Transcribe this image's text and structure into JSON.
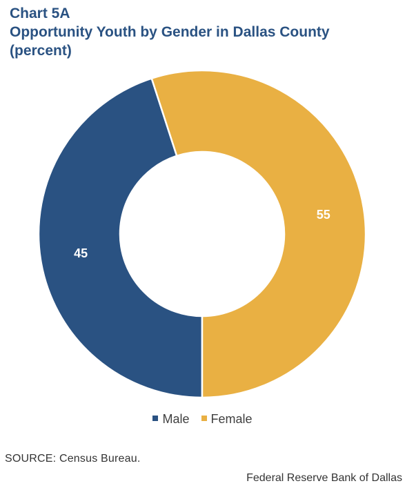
{
  "header": {
    "chart_number": "Chart 5A",
    "title": "Opportunity Youth by Gender in Dallas County",
    "unit": "(percent)"
  },
  "chart_data": {
    "type": "pie",
    "variant": "donut",
    "title": "Opportunity Youth by Gender in Dallas County",
    "subtitle": "(percent)",
    "categories": [
      "Male",
      "Female"
    ],
    "values": [
      45,
      55
    ],
    "colors": [
      "#2a5282",
      "#e9b043"
    ],
    "label_color": "#ffffff",
    "legend_position": "bottom"
  },
  "legend": {
    "items": [
      {
        "label": "Male",
        "color": "#2a5282"
      },
      {
        "label": "Female",
        "color": "#e9b043"
      }
    ]
  },
  "footer": {
    "source": "SOURCE:  Census Bureau.",
    "credit": "Federal Reserve Bank of Dallas"
  }
}
